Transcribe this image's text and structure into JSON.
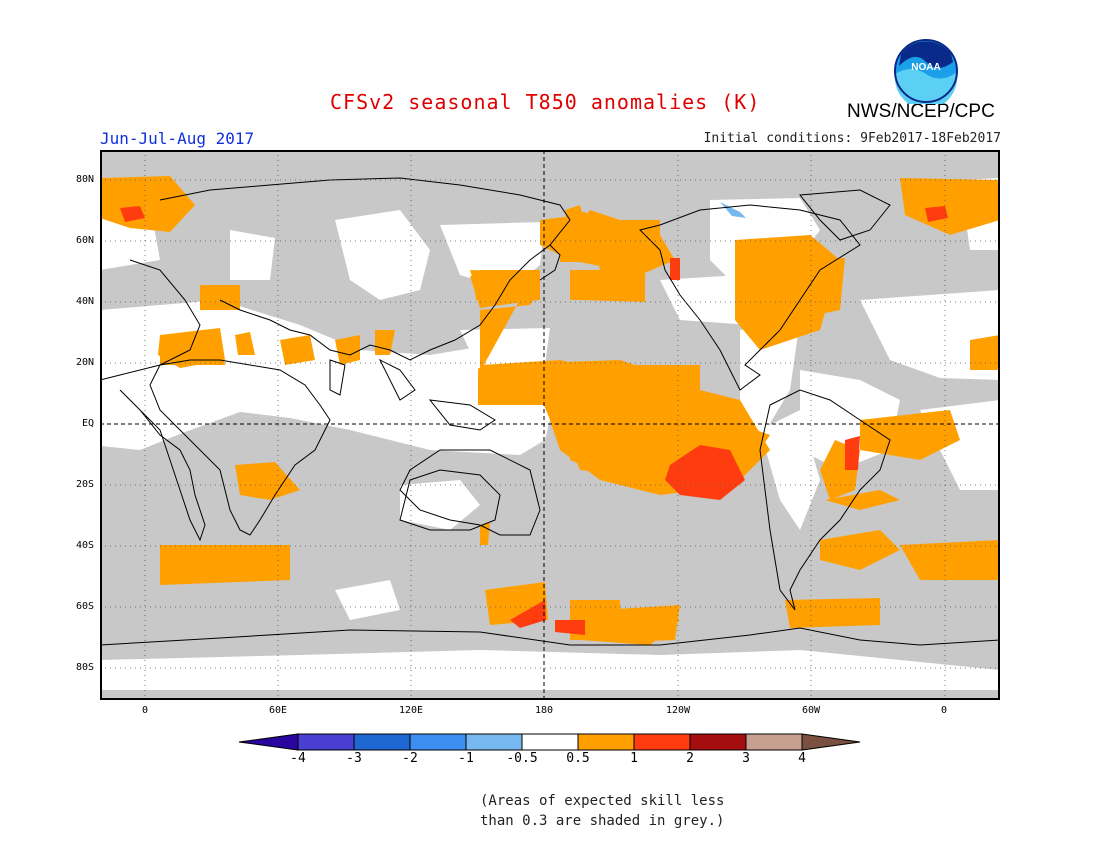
{
  "title": "CFSv2 seasonal T850 anomalies (K)",
  "agency": "NWS/NCEP/CPC",
  "logo_text": "NOAA",
  "season": "Jun-Jul-Aug 2017",
  "initial_conditions": "Initial conditions: 9Feb2017-18Feb2017",
  "lat_labels": [
    "80N",
    "60N",
    "40N",
    "20N",
    "EQ",
    "20S",
    "40S",
    "60S",
    "80S"
  ],
  "lon_labels": [
    "0",
    "60E",
    "120E",
    "180",
    "120W",
    "60W",
    "0"
  ],
  "colorbar": {
    "ticks": [
      "-4",
      "-3",
      "-2",
      "-1",
      "-0.5",
      "0.5",
      "1",
      "2",
      "3",
      "4"
    ],
    "colors": [
      "#2a05a0",
      "#4a3ed2",
      "#1e66d0",
      "#3c8ef0",
      "#78b8f0",
      "#ffffff",
      "#ffa000",
      "#ff3c10",
      "#a40e0e",
      "#c8a090",
      "#7a5040"
    ]
  },
  "legend_colors": {
    "grey_low_skill": "#c8c8c8",
    "orange_0.5_1": "#ffa000",
    "red_1_2": "#ff3c10"
  },
  "notes": [
    "(Areas of expected skill less",
    "than 0.3 are shaded in grey.)"
  ]
}
